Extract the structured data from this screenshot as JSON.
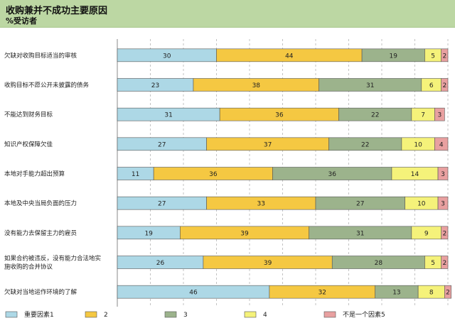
{
  "header": {
    "title": "收购兼并不成功主要原因",
    "subtitle": "%受访者"
  },
  "chart_data": {
    "type": "bar",
    "orientation": "horizontal",
    "stacked": true,
    "title": "收购兼并不成功主要原因",
    "subtitle": "%受访者",
    "xlim": [
      0,
      100
    ],
    "grid": "vertical dashed",
    "legend_position": "bottom",
    "categories": [
      "欠缺对收购目标适当的审核",
      "收购目标不愿公开未披露的债务",
      "不能达到财务目标",
      "知识产权保障欠佳",
      "本地对手能力超出预算",
      "本地及中央当局负面的压力",
      "没有能力去保留主力的雇员",
      "如果合约被违反，没有能力合法地实施收购的合并协议",
      "欠缺对当地运作环境的了解"
    ],
    "series": [
      {
        "name": "重要因素1",
        "color": "#add8e6",
        "values": [
          30,
          23,
          31,
          27,
          11,
          27,
          19,
          26,
          46
        ]
      },
      {
        "name": "2",
        "color": "#f5c842",
        "values": [
          44,
          38,
          36,
          37,
          36,
          33,
          39,
          39,
          32
        ]
      },
      {
        "name": "3",
        "color": "#9cb38c",
        "values": [
          19,
          31,
          22,
          22,
          36,
          27,
          31,
          28,
          13
        ]
      },
      {
        "name": "4",
        "color": "#f5f27a",
        "values": [
          5,
          6,
          7,
          10,
          14,
          10,
          9,
          5,
          8
        ]
      },
      {
        "name": "不是一个因素5",
        "color": "#e8a0a0",
        "values": [
          2,
          2,
          3,
          4,
          3,
          3,
          2,
          2,
          2
        ]
      }
    ]
  }
}
